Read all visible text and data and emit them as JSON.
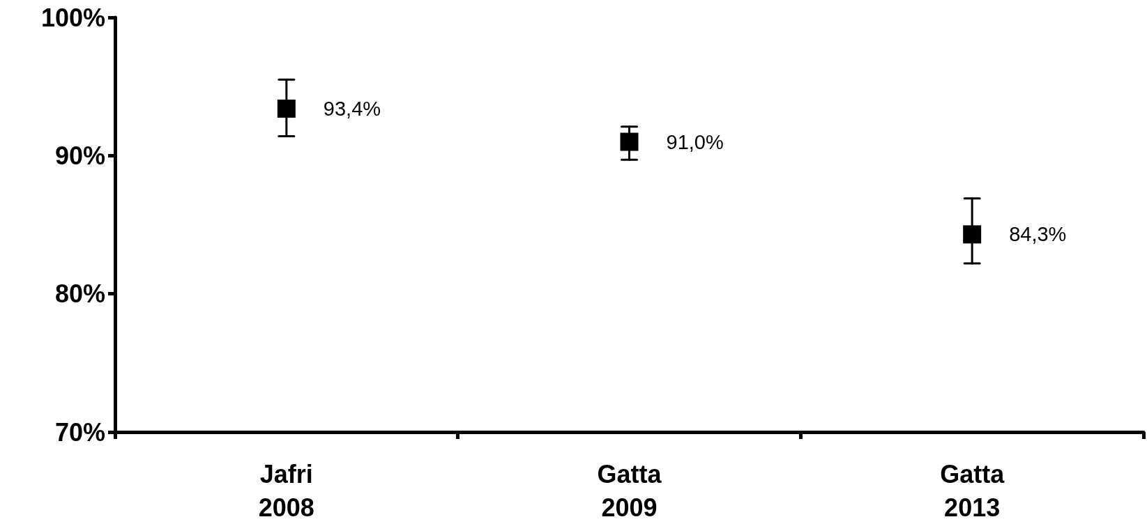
{
  "chart_data": {
    "type": "scatter",
    "categories": [
      "Jafri\n2008",
      "Gatta\n2009",
      "Gatta\n2013"
    ],
    "values": [
      93.4,
      91.0,
      84.3
    ],
    "errors": [
      [
        91.4,
        95.5
      ],
      [
        89.7,
        92.1
      ],
      [
        82.2,
        86.9
      ]
    ],
    "value_labels": [
      "93,4%",
      "91,0%",
      "84,3%"
    ],
    "color": "#000000",
    "marker": "square",
    "ylim": [
      70,
      100
    ],
    "yticks": [
      {
        "value": 70,
        "label": "70%"
      },
      {
        "value": 80,
        "label": "80%"
      },
      {
        "value": 90,
        "label": "90%"
      },
      {
        "value": 100,
        "label": "100%"
      }
    ],
    "grid": false
  }
}
